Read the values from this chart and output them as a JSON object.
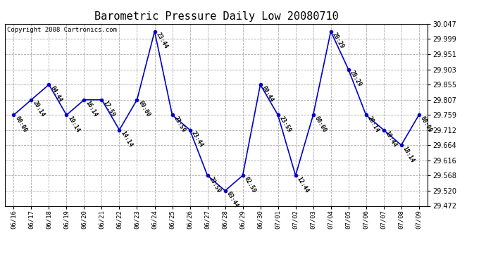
{
  "title": "Barometric Pressure Daily Low 20080710",
  "copyright": "Copyright 2008 Cartronics.com",
  "dates": [
    "06/16",
    "06/17",
    "06/18",
    "06/19",
    "06/20",
    "06/21",
    "06/22",
    "06/23",
    "06/24",
    "06/25",
    "06/26",
    "06/27",
    "06/28",
    "06/29",
    "06/30",
    "07/01",
    "07/02",
    "07/03",
    "07/04",
    "07/05",
    "07/06",
    "07/07",
    "07/08",
    "07/09"
  ],
  "values": [
    29.759,
    29.807,
    29.855,
    29.759,
    29.807,
    29.807,
    29.712,
    29.807,
    30.023,
    29.759,
    29.712,
    29.568,
    29.52,
    29.568,
    29.855,
    29.759,
    29.568,
    29.759,
    30.023,
    29.903,
    29.759,
    29.712,
    29.664,
    29.759
  ],
  "times": [
    "00:00",
    "20:14",
    "04:44",
    "19:14",
    "16:14",
    "17:59",
    "14:14",
    "00:00",
    "23:44",
    "23:59",
    "23:44",
    "23:59",
    "03:44",
    "02:59",
    "00:44",
    "23:59",
    "12:44",
    "00:00",
    "20:29",
    "20:29",
    "20:14",
    "19:44",
    "18:14",
    "00:00"
  ],
  "ylim": [
    29.472,
    30.047
  ],
  "yticks": [
    29.472,
    29.52,
    29.568,
    29.616,
    29.664,
    29.712,
    29.759,
    29.807,
    29.855,
    29.903,
    29.951,
    29.999,
    30.047
  ],
  "line_color": "#0000cc",
  "marker_color": "#0000cc",
  "bg_color": "#ffffff",
  "grid_color": "#aaaaaa",
  "title_fontsize": 11,
  "annotation_fontsize": 6.0,
  "copyright_fontsize": 6.5,
  "xtick_fontsize": 6.5,
  "ytick_fontsize": 7.0
}
